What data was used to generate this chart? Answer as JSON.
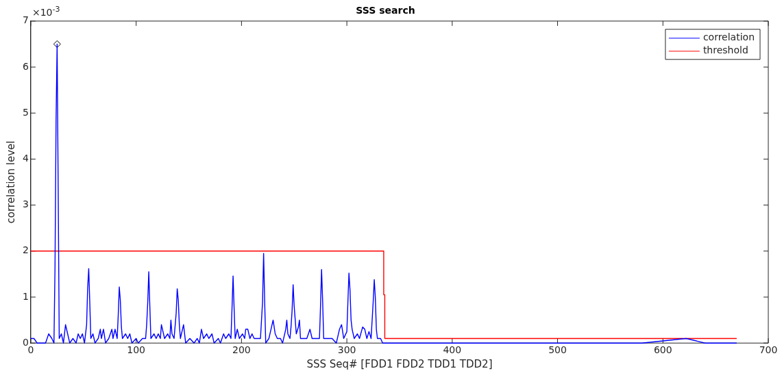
{
  "chart_data": {
    "type": "line",
    "title": "SSS search",
    "xlabel": "SSS Seq# [FDD1 FDD2 TDD1 TDD2]",
    "ylabel": "correlation level",
    "annotations": [
      "×10$^{-3}$"
    ],
    "xlim": [
      0,
      700
    ],
    "xticks": [
      0,
      100,
      200,
      300,
      400,
      500,
      600,
      700
    ],
    "ylim": [
      0,
      7
    ],
    "yticks": [
      0,
      1,
      2,
      3,
      4,
      5,
      6,
      7
    ],
    "grid": false,
    "legend": "top right",
    "series": [
      {
        "name": "correlation",
        "color": "#0000ff",
        "marker": "none",
        "x": [
          0,
          3,
          6,
          10,
          14,
          17,
          20,
          22,
          23,
          24,
          25,
          26,
          27,
          29,
          31,
          33,
          35,
          37,
          40,
          43,
          45,
          47,
          49,
          51,
          53,
          54,
          55,
          56,
          57,
          59,
          61,
          64,
          66,
          67,
          69,
          71,
          74,
          77,
          78,
          80,
          82,
          83,
          84,
          85,
          86,
          87,
          90,
          92,
          94,
          96,
          100,
          102,
          106,
          109,
          110,
          111,
          112,
          113,
          114,
          117,
          119,
          121,
          123,
          124,
          125,
          127,
          130,
          132,
          133,
          134,
          136,
          138,
          139,
          140,
          141,
          142,
          145,
          147,
          151,
          155,
          158,
          160,
          162,
          164,
          167,
          169,
          172,
          174,
          178,
          180,
          183,
          185,
          188,
          190,
          191,
          192,
          193,
          194,
          196,
          198,
          201,
          203,
          204,
          206,
          208,
          210,
          212,
          215,
          218,
          220,
          221,
          222,
          223,
          226,
          228,
          230,
          232,
          234,
          237,
          239,
          242,
          243,
          244,
          246,
          247,
          248,
          249,
          250,
          251,
          252,
          254,
          255,
          256,
          259,
          262,
          265,
          267,
          270,
          272,
          274,
          275,
          276,
          277,
          278,
          281,
          283,
          286,
          290,
          293,
          295,
          297,
          300,
          301,
          302,
          303,
          304,
          305,
          307,
          310,
          312,
          315,
          317,
          319,
          321,
          323,
          325,
          326,
          327,
          328,
          329,
          332,
          334,
          336,
          360,
          400,
          450,
          520,
          580,
          622,
          640,
          670
        ],
        "values": [
          0.1,
          0.1,
          0,
          0,
          0,
          0.2,
          0.1,
          0,
          1.65,
          4.85,
          6.5,
          3.4,
          0.1,
          0.2,
          0,
          0.4,
          0.2,
          0,
          0.1,
          0,
          0.2,
          0.1,
          0.2,
          0,
          0.4,
          1.2,
          1.62,
          0.88,
          0.1,
          0.2,
          0,
          0.1,
          0.3,
          0.1,
          0.3,
          0,
          0.1,
          0.3,
          0.1,
          0.3,
          0.1,
          0.6,
          1.22,
          0.93,
          0.35,
          0.1,
          0.2,
          0.1,
          0.2,
          0,
          0.1,
          0,
          0.1,
          0.1,
          0.4,
          0.88,
          1.55,
          0.8,
          0.1,
          0.2,
          0.1,
          0.2,
          0.1,
          0.4,
          0.3,
          0.1,
          0.2,
          0.1,
          0.5,
          0.2,
          0.1,
          0.65,
          1.18,
          0.93,
          0.4,
          0.1,
          0.4,
          0,
          0.1,
          0,
          0.1,
          0,
          0.3,
          0.1,
          0.2,
          0.1,
          0.2,
          0,
          0.1,
          0,
          0.2,
          0.1,
          0.2,
          0.1,
          0.75,
          1.46,
          0.75,
          0.1,
          0.3,
          0.1,
          0.2,
          0.1,
          0.3,
          0.3,
          0.1,
          0.2,
          0.1,
          0.1,
          0.1,
          0.9,
          1.95,
          0.9,
          0,
          0.1,
          0.3,
          0.5,
          0.2,
          0.1,
          0.1,
          0,
          0.3,
          0.5,
          0.2,
          0.1,
          0.35,
          0.7,
          1.27,
          0.8,
          0.5,
          0.2,
          0.35,
          0.5,
          0.1,
          0.1,
          0.1,
          0.3,
          0.1,
          0.1,
          0.1,
          0.1,
          0.8,
          1.6,
          0.93,
          0.1,
          0.1,
          0.1,
          0.1,
          0,
          0.3,
          0.4,
          0.1,
          0.25,
          0.9,
          1.52,
          1.15,
          0.5,
          0.3,
          0.1,
          0.2,
          0.1,
          0.35,
          0.3,
          0.1,
          0.25,
          0.1,
          0.9,
          1.38,
          1.0,
          0.3,
          0.1,
          0.1,
          0,
          0,
          0,
          0,
          0,
          0,
          0,
          0.1,
          0,
          0
        ]
      },
      {
        "name": "threshold",
        "color": "#ff0000",
        "marker": "none",
        "x": [
          0,
          335,
          335,
          336,
          336,
          670
        ],
        "values": [
          2,
          2,
          1.05,
          1.05,
          0.1,
          0.1
        ]
      },
      {
        "type": "scatter",
        "color": "#000000",
        "marker": "diamond",
        "x": [
          25
        ],
        "values": [
          6.5
        ]
      }
    ]
  }
}
